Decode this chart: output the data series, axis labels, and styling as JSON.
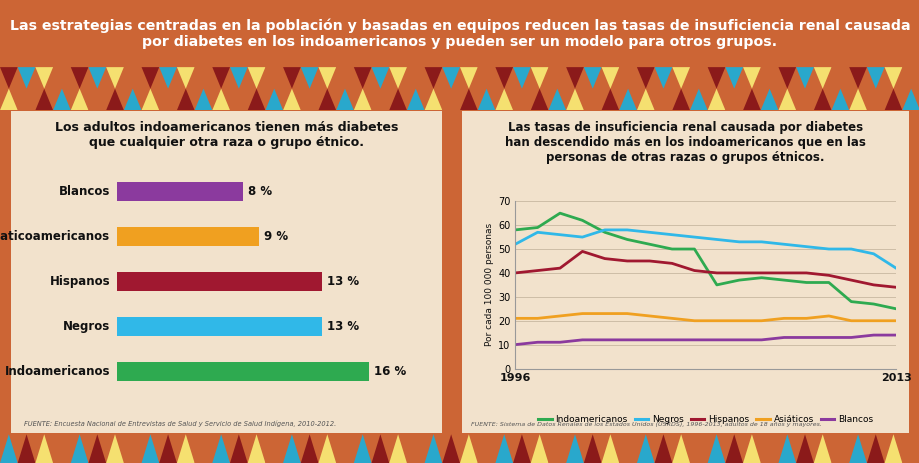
{
  "title": "Las estrategias centradas en la población y basadas en equipos reducen las tasas de insuficiencia renal causada\npor diabetes en los indoamericanos y pueden ser un modelo para otros grupos.",
  "header_bg": "#D4683B",
  "main_bg": "#CC6535",
  "panel_bg": "#F2E2CC",
  "zigzag_top_colors": [
    "#8B1A1A",
    "#29A8CC",
    "#F5E070",
    "#CC6535"
  ],
  "zigzag_bottom_colors": [
    "#29A8CC",
    "#8B1A1A",
    "#F5E070",
    "#CC6535"
  ],
  "bar_title": "Los adultos indoamericanos tienen más diabetes\nque cualquier otra raza o grupo étnico.",
  "bar_categories": [
    "Blancos",
    "Asiaticoamericanos",
    "Hispanos",
    "Negros",
    "Indoamericanos"
  ],
  "bar_values": [
    8,
    9,
    13,
    13,
    16
  ],
  "bar_colors": [
    "#8B3A9E",
    "#F0A020",
    "#A01830",
    "#30B8E8",
    "#2EAA50"
  ],
  "bar_source": "FUENTE: Encuesta Nacional de Entrevistas de Salud y Servicio de Salud Indígena, 2010-2012.",
  "line_title": "Las tasas de insuficiencia renal causada por diabetes\nhan descendido más en los indoamericanos que en las\npersonas de otras razas o grupos étnicos.",
  "line_ylabel": "Por cada 100 000 personas",
  "line_years": [
    1996,
    1997,
    1998,
    1999,
    2000,
    2001,
    2002,
    2003,
    2004,
    2005,
    2006,
    2007,
    2008,
    2009,
    2010,
    2011,
    2012,
    2013
  ],
  "line_indoamericanos": [
    58,
    59,
    65,
    62,
    57,
    54,
    52,
    50,
    50,
    35,
    37,
    38,
    37,
    36,
    36,
    28,
    27,
    25
  ],
  "line_negros": [
    52,
    57,
    56,
    55,
    58,
    58,
    57,
    56,
    55,
    54,
    53,
    53,
    52,
    51,
    50,
    50,
    48,
    42
  ],
  "line_hispanos": [
    40,
    41,
    42,
    49,
    46,
    45,
    45,
    44,
    41,
    40,
    40,
    40,
    40,
    40,
    39,
    37,
    35,
    34
  ],
  "line_asiaticos": [
    21,
    21,
    22,
    23,
    23,
    23,
    22,
    21,
    20,
    20,
    20,
    20,
    21,
    21,
    22,
    20,
    20,
    20
  ],
  "line_blancos": [
    10,
    11,
    11,
    12,
    12,
    12,
    12,
    12,
    12,
    12,
    12,
    12,
    13,
    13,
    13,
    13,
    14,
    14
  ],
  "line_colors": {
    "Indoamericanos": "#2EAA50",
    "Negros": "#30B8E8",
    "Hispanos": "#A01830",
    "Asiaticos": "#F0A020",
    "Blancos": "#8B3A9E"
  },
  "line_ylim": [
    0,
    70
  ],
  "line_source": "FUENTE: Sistema de Datos Renales de los Estados Unidos (USRDS), 1996-2013, adultos de 18 años y mayores."
}
